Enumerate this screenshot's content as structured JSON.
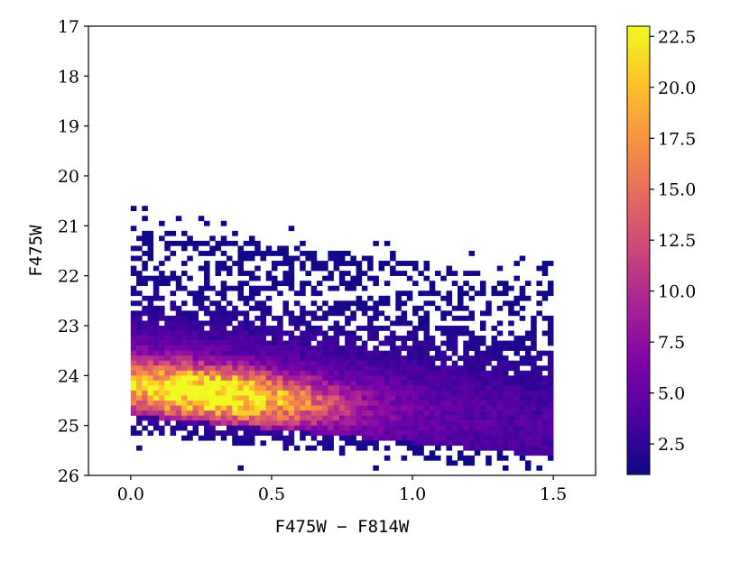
{
  "chart_data": {
    "type": "heatmap",
    "title": "",
    "xlabel": "F475W − F814W",
    "ylabel": "F475W",
    "xlim": [
      -0.15,
      1.65
    ],
    "ylim": [
      26,
      17
    ],
    "y_inverted": true,
    "x_ticks": [
      {
        "value": 0.0,
        "label": "0.0"
      },
      {
        "value": 0.5,
        "label": "0.5"
      },
      {
        "value": 1.0,
        "label": "1.0"
      },
      {
        "value": 1.5,
        "label": "1.5"
      }
    ],
    "y_ticks": [
      {
        "value": 17,
        "label": "17"
      },
      {
        "value": 18,
        "label": "18"
      },
      {
        "value": 19,
        "label": "19"
      },
      {
        "value": 20,
        "label": "20"
      },
      {
        "value": 21,
        "label": "21"
      },
      {
        "value": 22,
        "label": "22"
      },
      {
        "value": 23,
        "label": "23"
      },
      {
        "value": 24,
        "label": "24"
      },
      {
        "value": 25,
        "label": "25"
      },
      {
        "value": 26,
        "label": "26"
      }
    ],
    "bins": {
      "x_min": 0.0,
      "x_max": 1.5,
      "x_width": 0.02,
      "y_min": 20.2,
      "y_max": 26.0,
      "y_width": 0.1
    },
    "colorbar": {
      "colormap": "plasma",
      "min": 1,
      "max": 23,
      "ticks": [
        {
          "value": 2.5,
          "label": "2.5"
        },
        {
          "value": 5.0,
          "label": "5.0"
        },
        {
          "value": 7.5,
          "label": "7.5"
        },
        {
          "value": 10.0,
          "label": "10.0"
        },
        {
          "value": 12.5,
          "label": "12.5"
        },
        {
          "value": 15.0,
          "label": "15.0"
        },
        {
          "value": 17.5,
          "label": "17.5"
        },
        {
          "value": 20.0,
          "label": "20.0"
        },
        {
          "value": 22.5,
          "label": "22.5"
        }
      ]
    },
    "density_peak": {
      "x": 0.25,
      "y": 24.25,
      "count": 23
    }
  }
}
